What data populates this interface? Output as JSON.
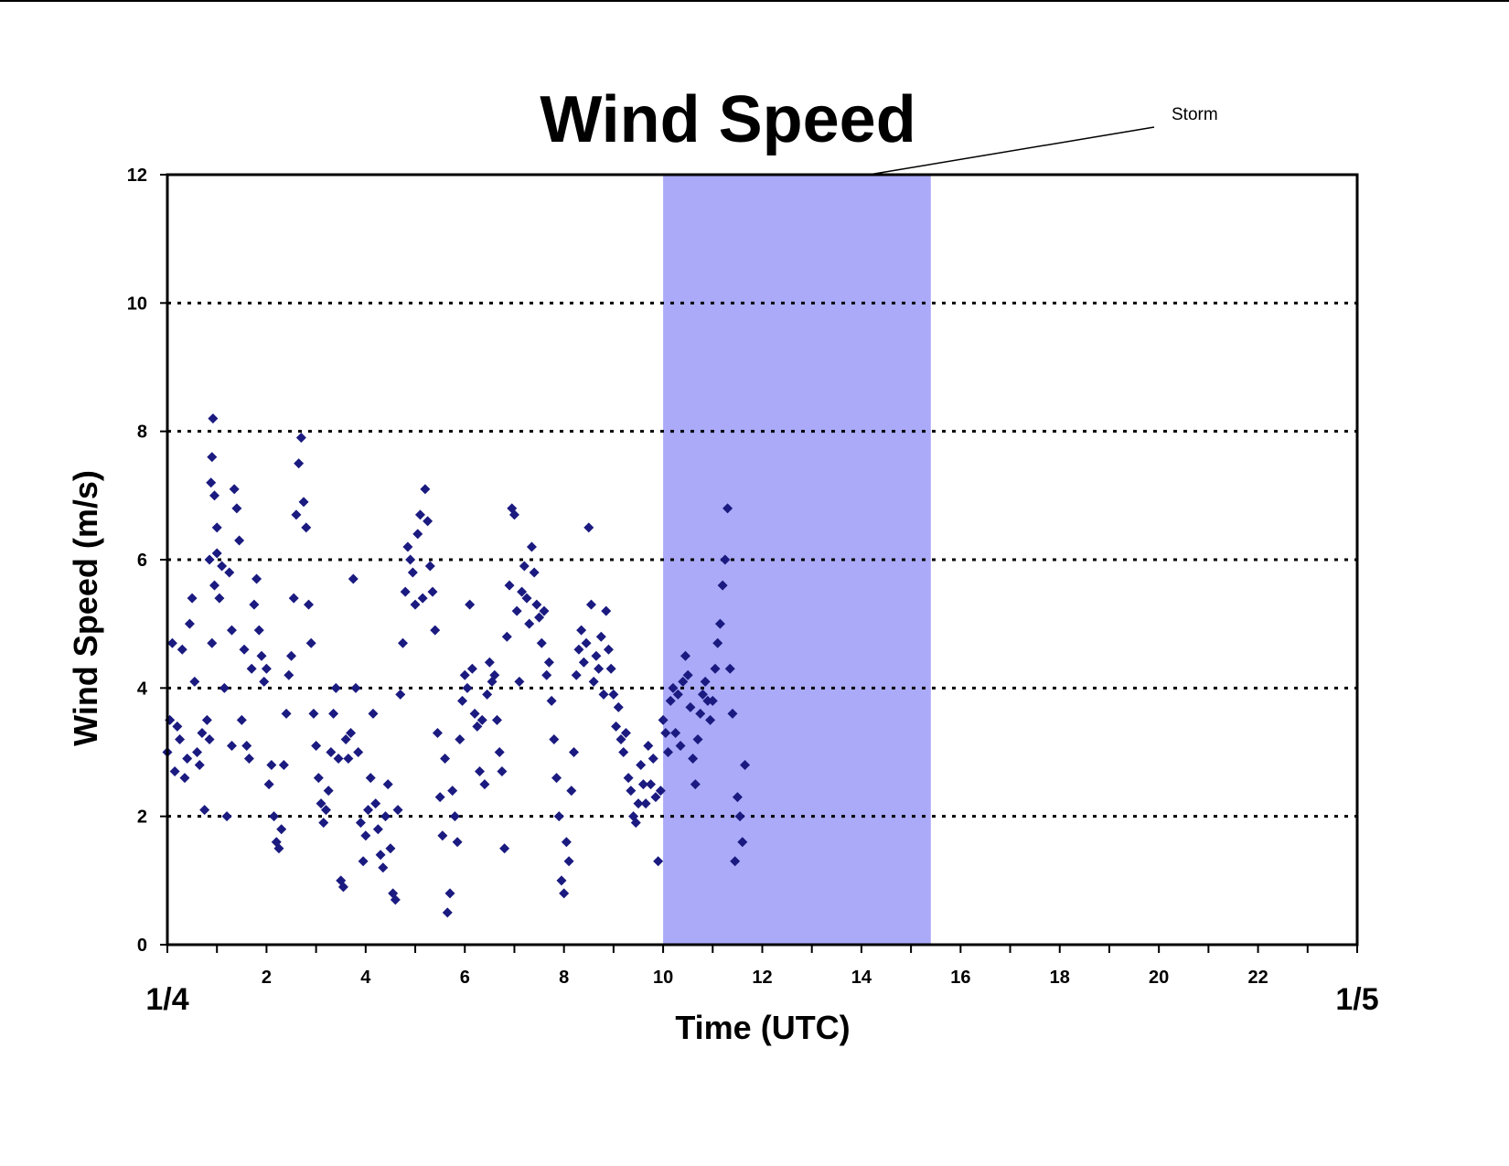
{
  "chart_data": {
    "type": "scatter",
    "title": "Wind Speed",
    "xlabel": "Time (UTC)",
    "ylabel": "Wind Speed (m/s)",
    "xlim": [
      0,
      24
    ],
    "ylim": [
      0,
      12
    ],
    "x_ticks": [
      2,
      4,
      6,
      8,
      10,
      12,
      14,
      16,
      18,
      20,
      22
    ],
    "y_ticks": [
      0,
      2,
      4,
      6,
      8,
      10,
      12
    ],
    "y_grid": [
      2,
      4,
      6,
      8,
      10
    ],
    "grid": "horizontal dotted",
    "date_start_label": "1/4",
    "date_end_label": "1/5",
    "shaded_region": {
      "x_start": 10,
      "x_end": 15.4,
      "color": "#aaaaf8",
      "label": "Storm"
    },
    "marker_color": "#1a1a80",
    "series": [
      {
        "points": [
          [
            0.0,
            3.0
          ],
          [
            0.05,
            3.5
          ],
          [
            0.1,
            4.7
          ],
          [
            0.15,
            2.7
          ],
          [
            0.2,
            3.4
          ],
          [
            0.25,
            3.2
          ],
          [
            0.3,
            4.6
          ],
          [
            0.35,
            2.6
          ],
          [
            0.4,
            2.9
          ],
          [
            0.45,
            5.0
          ],
          [
            0.5,
            5.4
          ],
          [
            0.55,
            4.1
          ],
          [
            0.6,
            3.0
          ],
          [
            0.65,
            2.8
          ],
          [
            0.7,
            3.3
          ],
          [
            0.75,
            2.1
          ],
          [
            0.8,
            3.5
          ],
          [
            0.85,
            3.2
          ],
          [
            0.9,
            4.7
          ],
          [
            0.95,
            5.6
          ],
          [
            1.0,
            6.1
          ],
          [
            0.85,
            6.0
          ],
          [
            0.88,
            7.2
          ],
          [
            0.9,
            7.6
          ],
          [
            0.92,
            8.2
          ],
          [
            0.95,
            7.0
          ],
          [
            1.0,
            6.5
          ],
          [
            1.05,
            5.4
          ],
          [
            1.1,
            5.9
          ],
          [
            1.15,
            4.0
          ],
          [
            1.2,
            2.0
          ],
          [
            1.25,
            5.8
          ],
          [
            1.3,
            4.9
          ],
          [
            1.3,
            3.1
          ],
          [
            1.35,
            7.1
          ],
          [
            1.4,
            6.8
          ],
          [
            1.45,
            6.3
          ],
          [
            1.5,
            3.5
          ],
          [
            1.55,
            4.6
          ],
          [
            1.6,
            3.1
          ],
          [
            1.65,
            2.9
          ],
          [
            1.7,
            4.3
          ],
          [
            1.75,
            5.3
          ],
          [
            1.8,
            5.7
          ],
          [
            1.85,
            4.9
          ],
          [
            1.9,
            4.5
          ],
          [
            1.95,
            4.1
          ],
          [
            2.0,
            4.3
          ],
          [
            2.05,
            2.5
          ],
          [
            2.1,
            2.8
          ],
          [
            2.15,
            2.0
          ],
          [
            2.2,
            1.6
          ],
          [
            2.25,
            1.5
          ],
          [
            2.3,
            1.8
          ],
          [
            2.35,
            2.8
          ],
          [
            2.4,
            3.6
          ],
          [
            2.45,
            4.2
          ],
          [
            2.5,
            4.5
          ],
          [
            2.55,
            5.4
          ],
          [
            2.6,
            6.7
          ],
          [
            2.65,
            7.5
          ],
          [
            2.7,
            7.9
          ],
          [
            2.75,
            6.9
          ],
          [
            2.8,
            6.5
          ],
          [
            2.85,
            5.3
          ],
          [
            2.9,
            4.7
          ],
          [
            2.95,
            3.6
          ],
          [
            3.0,
            3.1
          ],
          [
            3.05,
            2.6
          ],
          [
            3.1,
            2.2
          ],
          [
            3.15,
            1.9
          ],
          [
            3.2,
            2.1
          ],
          [
            3.25,
            2.4
          ],
          [
            3.3,
            3.0
          ],
          [
            3.35,
            3.6
          ],
          [
            3.4,
            4.0
          ],
          [
            3.45,
            2.9
          ],
          [
            3.5,
            1.0
          ],
          [
            3.55,
            0.9
          ],
          [
            3.6,
            3.2
          ],
          [
            3.65,
            2.9
          ],
          [
            3.7,
            3.3
          ],
          [
            3.75,
            5.7
          ],
          [
            3.8,
            4.0
          ],
          [
            3.85,
            3.0
          ],
          [
            3.9,
            1.9
          ],
          [
            3.95,
            1.3
          ],
          [
            4.0,
            1.7
          ],
          [
            4.05,
            2.1
          ],
          [
            4.1,
            2.6
          ],
          [
            4.15,
            3.6
          ],
          [
            4.2,
            2.2
          ],
          [
            4.25,
            1.8
          ],
          [
            4.3,
            1.4
          ],
          [
            4.35,
            1.2
          ],
          [
            4.4,
            2.0
          ],
          [
            4.45,
            2.5
          ],
          [
            4.5,
            1.5
          ],
          [
            4.55,
            0.8
          ],
          [
            4.6,
            0.7
          ],
          [
            4.65,
            2.1
          ],
          [
            4.7,
            3.9
          ],
          [
            4.75,
            4.7
          ],
          [
            4.8,
            5.5
          ],
          [
            4.85,
            6.2
          ],
          [
            4.9,
            6.0
          ],
          [
            4.95,
            5.8
          ],
          [
            5.0,
            5.3
          ],
          [
            5.05,
            6.4
          ],
          [
            5.1,
            6.7
          ],
          [
            5.15,
            5.4
          ],
          [
            5.2,
            7.1
          ],
          [
            5.25,
            6.6
          ],
          [
            5.3,
            5.9
          ],
          [
            5.35,
            5.5
          ],
          [
            5.4,
            4.9
          ],
          [
            5.45,
            3.3
          ],
          [
            5.5,
            2.3
          ],
          [
            5.55,
            1.7
          ],
          [
            5.6,
            2.9
          ],
          [
            5.65,
            0.5
          ],
          [
            5.7,
            0.8
          ],
          [
            5.75,
            2.4
          ],
          [
            5.8,
            2.0
          ],
          [
            5.85,
            1.6
          ],
          [
            5.9,
            3.2
          ],
          [
            5.95,
            3.8
          ],
          [
            6.0,
            4.2
          ],
          [
            6.05,
            4.0
          ],
          [
            6.1,
            5.3
          ],
          [
            6.15,
            4.3
          ],
          [
            6.2,
            3.6
          ],
          [
            6.25,
            3.4
          ],
          [
            6.3,
            2.7
          ],
          [
            6.35,
            3.5
          ],
          [
            6.4,
            2.5
          ],
          [
            6.45,
            3.9
          ],
          [
            6.5,
            4.4
          ],
          [
            6.55,
            4.1
          ],
          [
            6.6,
            4.2
          ],
          [
            6.65,
            3.5
          ],
          [
            6.7,
            3.0
          ],
          [
            6.75,
            2.7
          ],
          [
            6.8,
            1.5
          ],
          [
            6.85,
            4.8
          ],
          [
            6.9,
            5.6
          ],
          [
            6.95,
            6.8
          ],
          [
            7.0,
            6.7
          ],
          [
            7.05,
            5.2
          ],
          [
            7.1,
            4.1
          ],
          [
            7.15,
            5.5
          ],
          [
            7.2,
            5.9
          ],
          [
            7.25,
            5.4
          ],
          [
            7.3,
            5.0
          ],
          [
            7.35,
            6.2
          ],
          [
            7.4,
            5.8
          ],
          [
            7.45,
            5.3
          ],
          [
            7.5,
            5.1
          ],
          [
            7.55,
            4.7
          ],
          [
            7.6,
            5.2
          ],
          [
            7.65,
            4.2
          ],
          [
            7.7,
            4.4
          ],
          [
            7.75,
            3.8
          ],
          [
            7.8,
            3.2
          ],
          [
            7.85,
            2.6
          ],
          [
            7.9,
            2.0
          ],
          [
            7.95,
            1.0
          ],
          [
            8.0,
            0.8
          ],
          [
            8.05,
            1.6
          ],
          [
            8.1,
            1.3
          ],
          [
            8.15,
            2.4
          ],
          [
            8.2,
            3.0
          ],
          [
            8.25,
            4.2
          ],
          [
            8.3,
            4.6
          ],
          [
            8.35,
            4.9
          ],
          [
            8.4,
            4.4
          ],
          [
            8.45,
            4.7
          ],
          [
            8.5,
            6.5
          ],
          [
            8.55,
            5.3
          ],
          [
            8.6,
            4.1
          ],
          [
            8.65,
            4.5
          ],
          [
            8.7,
            4.3
          ],
          [
            8.75,
            4.8
          ],
          [
            8.8,
            3.9
          ],
          [
            8.85,
            5.2
          ],
          [
            8.9,
            4.6
          ],
          [
            8.95,
            4.3
          ],
          [
            9.0,
            3.9
          ],
          [
            9.05,
            3.4
          ],
          [
            9.1,
            3.7
          ],
          [
            9.15,
            3.2
          ],
          [
            9.2,
            3.0
          ],
          [
            9.25,
            3.3
          ],
          [
            9.3,
            2.6
          ],
          [
            9.35,
            2.4
          ],
          [
            9.4,
            2.0
          ],
          [
            9.45,
            1.9
          ],
          [
            9.5,
            2.2
          ],
          [
            9.55,
            2.8
          ],
          [
            9.6,
            2.5
          ],
          [
            9.65,
            2.2
          ],
          [
            9.7,
            3.1
          ],
          [
            9.75,
            2.5
          ],
          [
            9.8,
            2.9
          ],
          [
            9.85,
            2.3
          ],
          [
            9.9,
            1.3
          ],
          [
            9.95,
            2.4
          ],
          [
            10.0,
            3.5
          ],
          [
            10.05,
            3.3
          ],
          [
            10.1,
            3.0
          ],
          [
            10.15,
            3.8
          ],
          [
            10.2,
            4.0
          ],
          [
            10.25,
            3.3
          ],
          [
            10.3,
            3.9
          ],
          [
            10.35,
            3.1
          ],
          [
            10.4,
            4.1
          ],
          [
            10.45,
            4.5
          ],
          [
            10.5,
            4.2
          ],
          [
            10.55,
            3.7
          ],
          [
            10.6,
            2.9
          ],
          [
            10.65,
            2.5
          ],
          [
            10.7,
            3.2
          ],
          [
            10.75,
            3.6
          ],
          [
            10.8,
            3.9
          ],
          [
            10.85,
            4.1
          ],
          [
            10.9,
            3.8
          ],
          [
            10.95,
            3.5
          ],
          [
            11.0,
            3.8
          ],
          [
            11.05,
            4.3
          ],
          [
            11.1,
            4.7
          ],
          [
            11.15,
            5.0
          ],
          [
            11.2,
            5.6
          ],
          [
            11.25,
            6.0
          ],
          [
            11.3,
            6.8
          ],
          [
            11.35,
            4.3
          ],
          [
            11.4,
            3.6
          ],
          [
            11.45,
            1.3
          ],
          [
            11.5,
            2.3
          ],
          [
            11.55,
            2.0
          ],
          [
            11.6,
            1.6
          ],
          [
            11.65,
            2.8
          ]
        ]
      }
    ]
  }
}
